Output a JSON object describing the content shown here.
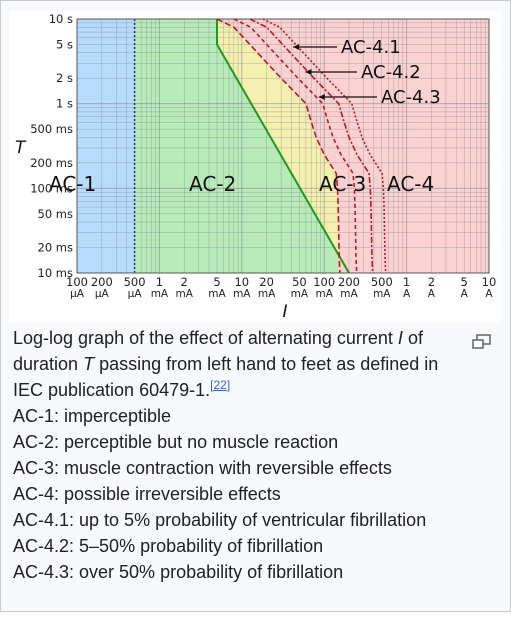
{
  "figure": {
    "t_axis_label": "T",
    "i_axis_label": "I",
    "t_ticks": [
      "10 s",
      "5 s",
      "2 s",
      "1 s",
      "500 ms",
      "200 ms",
      "100 ms",
      "50 ms",
      "20 ms",
      "10 ms"
    ],
    "i_ticks": [
      {
        "n": "100",
        "u": "µA"
      },
      {
        "n": "200",
        "u": "µA"
      },
      {
        "n": "500",
        "u": "µA"
      },
      {
        "n": "1",
        "u": "mA"
      },
      {
        "n": "2",
        "u": "mA"
      },
      {
        "n": "5",
        "u": "mA"
      },
      {
        "n": "10",
        "u": "mA"
      },
      {
        "n": "20",
        "u": "mA"
      },
      {
        "n": "50",
        "u": "mA"
      },
      {
        "n": "100",
        "u": "mA"
      },
      {
        "n": "200",
        "u": "mA"
      },
      {
        "n": "500",
        "u": "mA"
      },
      {
        "n": "1",
        "u": "A"
      },
      {
        "n": "2",
        "u": "A"
      },
      {
        "n": "5",
        "u": "A"
      },
      {
        "n": "10",
        "u": "A"
      }
    ],
    "zones": [
      "AC-1",
      "AC-2",
      "AC-3",
      "AC-4"
    ],
    "curves": [
      "AC-4.1",
      "AC-4.2",
      "AC-4.3"
    ],
    "colors": {
      "ac1": "#b7dcfb",
      "ac2": "#b9eab9",
      "ac3": "#f5f0b0",
      "ac4": "#fbd2d2",
      "boundary_green": "#1f9a1f",
      "boundary_blue": "#1f3fb0",
      "boundary_red": "#c4161c",
      "grid": "#6f7a86"
    }
  },
  "caption": {
    "line_intro": "Log-log graph of the effect of alternating current ",
    "current_symbol": "I",
    "line_mid": " of duration ",
    "time_symbol": "T",
    "line_end": " passing from left hand to feet as defined in IEC publication 60479-1.",
    "ref": "[22]",
    "items": [
      "AC-1: imperceptible",
      "AC-2: perceptible but no muscle reaction",
      "AC-3: muscle contraction with reversible effects",
      "AC-4: possible irreversible effects",
      "AC-4.1: up to 5% probability of ventricular fibrillation",
      "AC-4.2: 5–50% probability of fibrillation",
      "AC-4.3: over 50% probability of fibrillation"
    ]
  }
}
